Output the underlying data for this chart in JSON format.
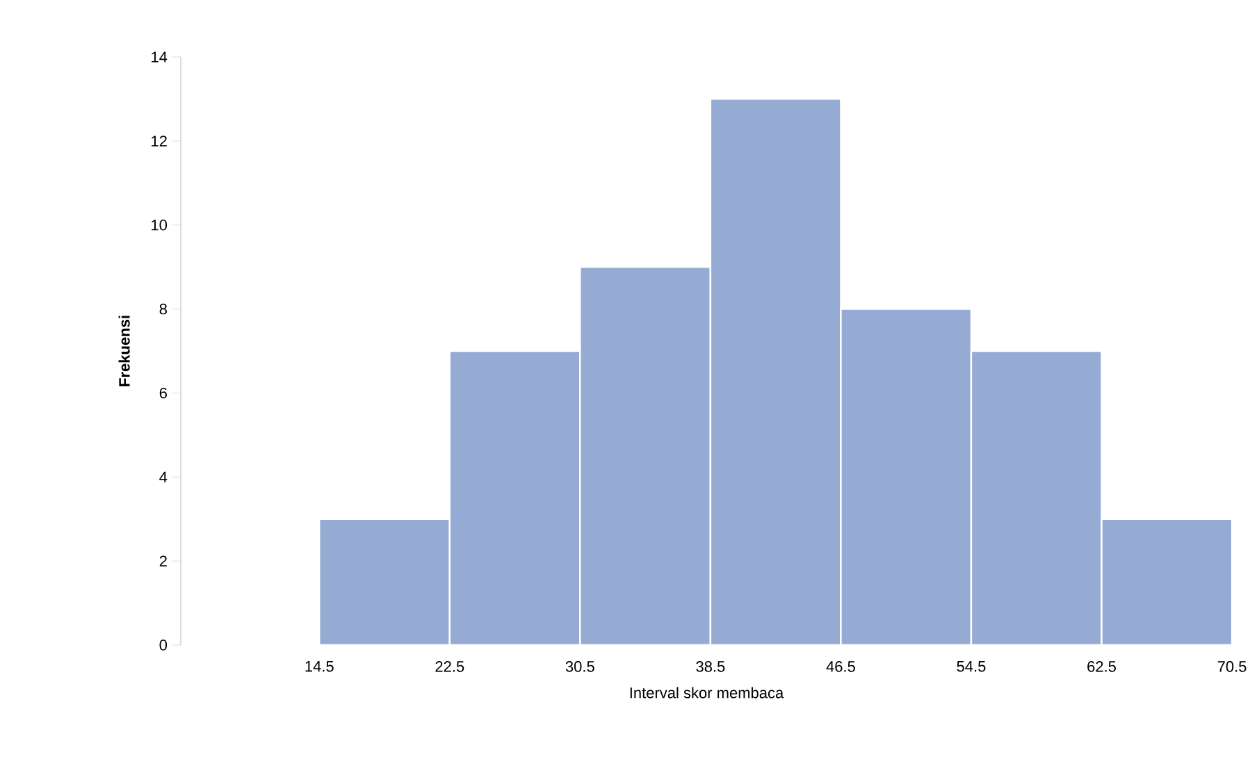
{
  "chart_data": {
    "type": "histogram",
    "xlabel": "Interval skor membaca",
    "ylabel": "Frekuensi",
    "bins": [
      14.5,
      22.5,
      30.5,
      38.5,
      46.5,
      54.5,
      62.5,
      70.5
    ],
    "values": [
      3,
      7,
      9,
      13,
      8,
      7,
      3
    ],
    "color": "#95abd3",
    "xlim": [
      6,
      70.5
    ],
    "ylim": [
      0,
      14
    ],
    "xticks": [
      14.5,
      22.5,
      30.5,
      38.5,
      46.5,
      54.5,
      62.5,
      70.5
    ],
    "yticks": [
      0,
      2,
      4,
      6,
      8,
      10,
      12,
      14
    ]
  }
}
